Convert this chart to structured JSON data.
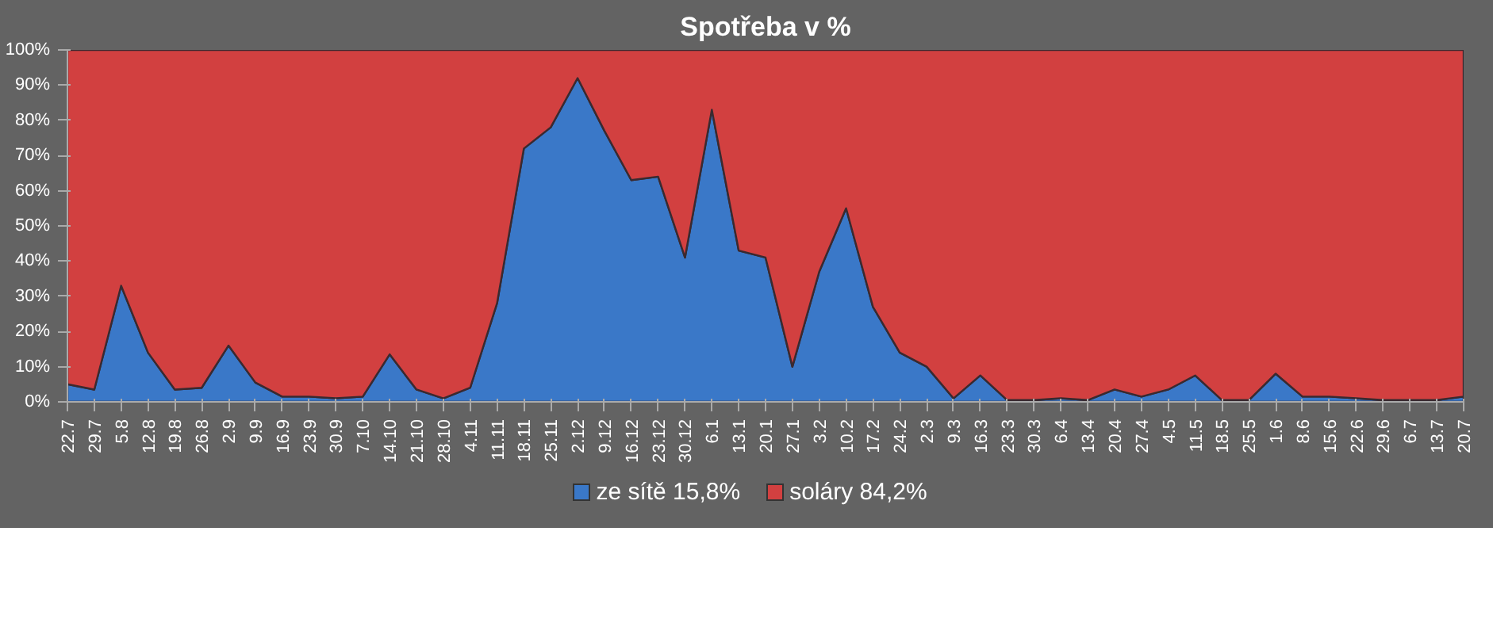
{
  "chart_data": {
    "type": "area",
    "title": "Spotřeba v %",
    "stacked": true,
    "legend": "bottom",
    "categories": [
      "22.7",
      "29.7",
      "5.8",
      "12.8",
      "19.8",
      "26.8",
      "2.9",
      "9.9",
      "16.9",
      "23.9",
      "30.9",
      "7.10",
      "14.10",
      "21.10",
      "28.10",
      "4.11",
      "11.11",
      "18.11",
      "25.11",
      "2.12",
      "9.12",
      "16.12",
      "23.12",
      "30.12",
      "6.1",
      "13.1",
      "20.1",
      "27.1",
      "3.2",
      "10.2",
      "17.2",
      "24.2",
      "2.3",
      "9.3",
      "16.3",
      "23.3",
      "30.3",
      "6.4",
      "13.4",
      "20.4",
      "27.4",
      "4.5",
      "11.5",
      "18.5",
      "25.5",
      "1.6",
      "8.6",
      "15.6",
      "22.6",
      "29.6",
      "6.7",
      "13.7",
      "20.7"
    ],
    "series": [
      {
        "name": "ze sítě 15,8%",
        "color": "#3a78c8",
        "values": [
          5,
          3.5,
          33,
          14,
          3.5,
          4,
          16,
          5.5,
          1.5,
          1.5,
          1,
          1.5,
          13.5,
          3.5,
          1,
          4,
          28,
          72,
          78,
          92,
          77,
          63,
          64,
          41,
          83,
          43,
          41,
          10,
          37,
          55,
          27,
          14,
          10,
          1,
          7.5,
          0.5,
          0.5,
          1,
          0.5,
          3.5,
          1.5,
          3.5,
          7.5,
          0.5,
          0.5,
          8,
          1.5,
          1.5,
          1,
          0.5,
          0.5,
          0.5,
          1.5
        ]
      },
      {
        "name": "soláry 84,2%",
        "color": "#d24040",
        "values": [
          95,
          96.5,
          67,
          86,
          96.5,
          96,
          84,
          94.5,
          98.5,
          98.5,
          99,
          98.5,
          86.5,
          96.5,
          99,
          96,
          72,
          28,
          22,
          8,
          23,
          37,
          36,
          59,
          17,
          57,
          59,
          90,
          63,
          45,
          73,
          86,
          90,
          99,
          92.5,
          99.5,
          99.5,
          99,
          99.5,
          96.5,
          98.5,
          96.5,
          92.5,
          99.5,
          99.5,
          92,
          98.5,
          98.5,
          99,
          99.5,
          99.5,
          99.5,
          98.5
        ]
      }
    ],
    "ylim": [
      0,
      100
    ],
    "yticks": [
      {
        "value": 0,
        "label": "0%"
      },
      {
        "value": 10,
        "label": "10%"
      },
      {
        "value": 20,
        "label": "20%"
      },
      {
        "value": 30,
        "label": "30%"
      },
      {
        "value": 40,
        "label": "40%"
      },
      {
        "value": 50,
        "label": "50%"
      },
      {
        "value": 60,
        "label": "60%"
      },
      {
        "value": 70,
        "label": "70%"
      },
      {
        "value": 80,
        "label": "80%"
      },
      {
        "value": 90,
        "label": "90%"
      },
      {
        "value": 100,
        "label": "100%"
      }
    ]
  }
}
